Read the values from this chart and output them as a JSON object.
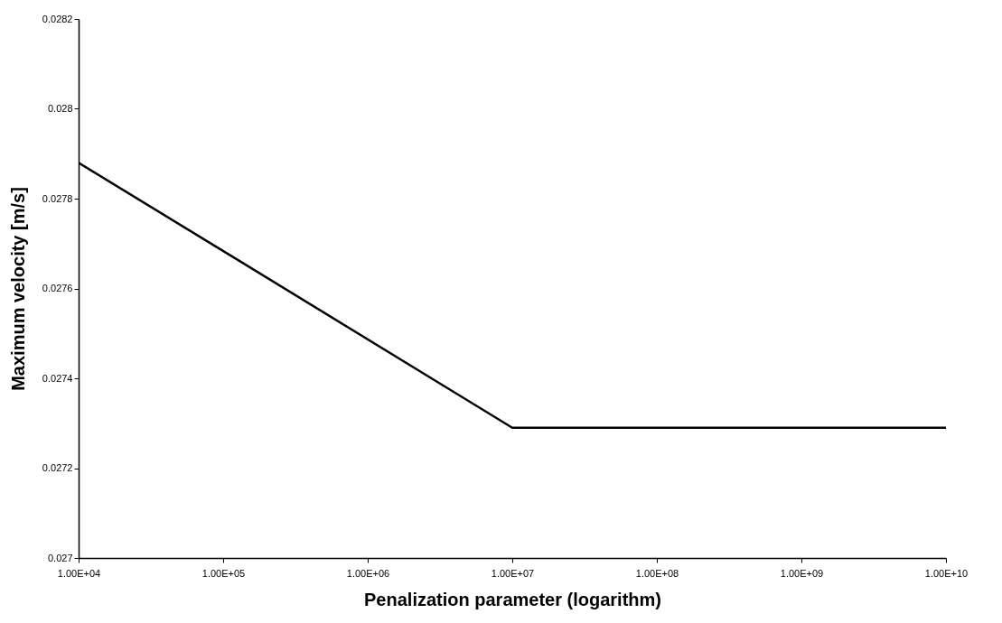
{
  "chart_data": {
    "type": "line",
    "xlabel": "Penalization parameter (logarithm)",
    "ylabel": "Maximum velocity [m/s]",
    "log": "x",
    "x": [
      10000,
      10000000,
      10000000000
    ],
    "series": [
      {
        "color": "#000000",
        "values": [
          0.02788,
          0.02729,
          0.02729
        ]
      }
    ],
    "xlim": [
      10000,
      10000000000
    ],
    "xticks": [
      {
        "value": 10000,
        "label": "1.00E+04"
      },
      {
        "value": 100000,
        "label": "1.00E+05"
      },
      {
        "value": 1000000,
        "label": "1.00E+06"
      },
      {
        "value": 10000000,
        "label": "1.00E+07"
      },
      {
        "value": 100000000,
        "label": "1.00E+08"
      },
      {
        "value": 1000000000,
        "label": "1.00E+09"
      },
      {
        "value": 10000000000,
        "label": "1.00E+10"
      }
    ],
    "ylim": [
      0.027,
      0.0282
    ],
    "yticks": [
      0.027,
      0.0272,
      0.0274,
      0.0276,
      0.0278,
      0.028,
      0.0282
    ],
    "grid": false,
    "marker": "none",
    "line_style": "solid"
  }
}
